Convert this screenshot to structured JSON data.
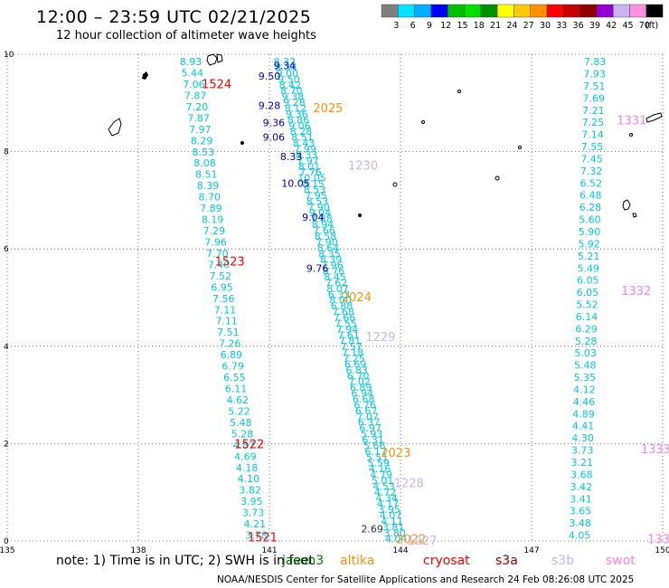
{
  "header": {
    "title": "12:00 – 23:59 UTC 02/21/2025",
    "subtitle": "12 hour collection of altimeter wave heights"
  },
  "colorbar": {
    "labels": [
      "3",
      "6",
      "9",
      "12",
      "15",
      "18",
      "21",
      "24",
      "27",
      "30",
      "33",
      "36",
      "39",
      "42",
      "45",
      "70",
      "(ft)"
    ],
    "colors": [
      "#7f7f7f",
      "#00e5ff",
      "#00b0ff",
      "#0000ff",
      "#00c000",
      "#00e000",
      "#009000",
      "#ffff00",
      "#ffc800",
      "#ff9000",
      "#ff0000",
      "#c80000",
      "#900000",
      "#9400d3",
      "#c8b4f0",
      "#ff90e0",
      "#000000"
    ]
  },
  "footer": {
    "note": "note: 1) Time is in UTC; 2) SWH is in feet",
    "credit": "NOAA/NESDIS Center for Satellite Applications and Research   24 Feb 08:26:08 UTC 2025",
    "satellites": [
      {
        "name": "jason3",
        "color": "#008000"
      },
      {
        "name": "altika",
        "color": "#ff9000"
      },
      {
        "name": "cryosat",
        "color": "#ff0000"
      },
      {
        "name": "s3a",
        "color": "#a00000"
      },
      {
        "name": "s3b",
        "color": "#c8b4f0"
      },
      {
        "name": "swot",
        "color": "#ff80e0"
      }
    ]
  },
  "chart_data": {
    "type": "scatter",
    "title": "12:00 – 23:59 UTC 02/21/2025",
    "xlim": [
      135,
      150
    ],
    "ylim": [
      0,
      10
    ],
    "xticks": [
      "135",
      "138",
      "141",
      "144",
      "147",
      "150"
    ],
    "yticks": [
      "0",
      "2",
      "4",
      "6",
      "8",
      "10"
    ],
    "grid": true,
    "tracks": [
      {
        "satellite": "jason3-track-a",
        "color": "#00c8e0",
        "x0": 139.2,
        "y0": 9.85,
        "x1": 140.7,
        "y1": 0.12,
        "values": [
          "8.93",
          "5.44",
          "7.06",
          "7.87",
          "7.20",
          "7.87",
          "7.97",
          "8.29",
          "8.53",
          "8.08",
          "8.51",
          "8.39",
          "8.70",
          "7.89",
          "8.19",
          "7.29",
          "7.96",
          "7.70",
          "7.40",
          "7.52",
          "6.95",
          "7.56",
          "7.11",
          "7.11",
          "7.51",
          "7.26",
          "6.89",
          "6.79",
          "6.55",
          "6.11",
          "4.62",
          "5.22",
          "5.48",
          "5.28",
          "4.87",
          "4.69",
          "4.18",
          "4.10",
          "3.82",
          "3.95",
          "3.73",
          "4.21",
          "3.78"
        ]
      },
      {
        "satellite": "mixed-track",
        "color": "#00c8e0",
        "x0": 141.35,
        "y0": 9.85,
        "x1": 143.9,
        "y1": 0.05,
        "values": [
          "8.32",
          "8.34",
          "9.00",
          "9.50",
          "8.42",
          "8.70",
          "9.38",
          "9.28",
          "8.12",
          "9.36",
          "8.86",
          "9.06",
          "8.28",
          "8.51",
          "8.43",
          "7.99",
          "8.33",
          "7.97",
          "8.01",
          "7.76",
          "10.05",
          "8.15",
          "8.53",
          "7.95",
          "8.53",
          "7.90",
          "9.04",
          "7.88",
          "8.94",
          "7.66",
          "8.58",
          "7.90",
          "8.64",
          "8.35",
          "8.39",
          "7.96",
          "8.76",
          "8.45",
          "7.62",
          "8.07",
          "6.33",
          "8.00",
          "6.88",
          "7.68",
          "7.66",
          "7.55",
          "7.94",
          "7.61",
          "7.81",
          "7.57",
          "7.18",
          "7.25",
          "6.69",
          "6.83",
          "6.70",
          "7.02",
          "6.89",
          "6.94",
          "6.68",
          "6.76",
          "6.67",
          "7.07",
          "6.37",
          "6.97",
          "5.93",
          "6.31",
          "5.66",
          "6.17",
          "5.51",
          "5.59",
          "4.16",
          "4.79",
          "5.01",
          "4.53",
          "4.72",
          "4.34",
          "4.17",
          "3.95",
          "4.07",
          "4.11",
          "3.81",
          "3.80",
          "4.04"
        ]
      },
      {
        "satellite": "jason3-track-b",
        "color": "#00c8e0",
        "x0": 148.45,
        "y0": 9.85,
        "x1": 148.1,
        "y1": 0.12,
        "values": [
          "7.83",
          "7.93",
          "7.51",
          "7.69",
          "7.21",
          "7.25",
          "7.14",
          "7.55",
          "7.45",
          "7.32",
          "6.52",
          "6.48",
          "6.28",
          "5.60",
          "5.90",
          "5.92",
          "5.21",
          "5.49",
          "6.05",
          "6.05",
          "5.52",
          "6.14",
          "6.29",
          "5.28",
          "5.03",
          "5.48",
          "5.35",
          "4.12",
          "4.46",
          "4.89",
          "4.41",
          "4.30",
          "3.73",
          "3.21",
          "3.68",
          "3.42",
          "3.41",
          "3.65",
          "3.48",
          "4.05"
        ]
      }
    ],
    "dark_values": [
      {
        "v": "9.34",
        "x": 141.35,
        "y": 9.77
      },
      {
        "v": "9.50",
        "x": 141.0,
        "y": 9.55
      },
      {
        "v": "9.28",
        "x": 141.0,
        "y": 8.95
      },
      {
        "v": "9.36",
        "x": 141.1,
        "y": 8.6
      },
      {
        "v": "9.06",
        "x": 141.1,
        "y": 8.3
      },
      {
        "v": "8.33",
        "x": 141.5,
        "y": 7.9
      },
      {
        "v": "10.05",
        "x": 141.6,
        "y": 7.35
      },
      {
        "v": "9.04",
        "x": 142.0,
        "y": 6.65
      },
      {
        "v": "9.76",
        "x": 142.1,
        "y": 5.6
      },
      {
        "v": "2.69",
        "x": 143.35,
        "y": 0.25
      }
    ],
    "pass_times": [
      {
        "label": "1524",
        "satellite": "cryosat",
        "x": 139.45,
        "y": 9.4
      },
      {
        "label": "1523",
        "satellite": "cryosat",
        "x": 139.75,
        "y": 5.75
      },
      {
        "label": "1522",
        "satellite": "cryosat",
        "x": 140.2,
        "y": 2.0
      },
      {
        "label": "1521",
        "satellite": "cryosat",
        "x": 140.5,
        "y": 0.08
      },
      {
        "label": "2025",
        "satellite": "altika",
        "x": 142.0,
        "y": 8.9
      },
      {
        "label": "2024",
        "satellite": "altika",
        "x": 142.65,
        "y": 5.02
      },
      {
        "label": "2023",
        "satellite": "altika",
        "x": 143.55,
        "y": 1.82
      },
      {
        "label": "2022",
        "satellite": "altika",
        "x": 143.9,
        "y": 0.05
      },
      {
        "label": "1230",
        "satellite": "s3b",
        "x": 142.8,
        "y": 7.72
      },
      {
        "label": "1229",
        "satellite": "s3b",
        "x": 143.2,
        "y": 4.2
      },
      {
        "label": "1228",
        "satellite": "s3b",
        "x": 143.85,
        "y": 1.2
      },
      {
        "label": "1227",
        "satellite": "s3b",
        "x": 144.15,
        "y": 0.02
      },
      {
        "label": "1331",
        "satellite": "swot",
        "x": 148.95,
        "y": 8.65
      },
      {
        "label": "1332",
        "satellite": "swot",
        "x": 149.05,
        "y": 5.15
      },
      {
        "label": "1333",
        "satellite": "swot",
        "x": 149.5,
        "y": 1.9
      },
      {
        "label": "133",
        "satellite": "swot",
        "x": 149.65,
        "y": 0.05
      }
    ]
  }
}
